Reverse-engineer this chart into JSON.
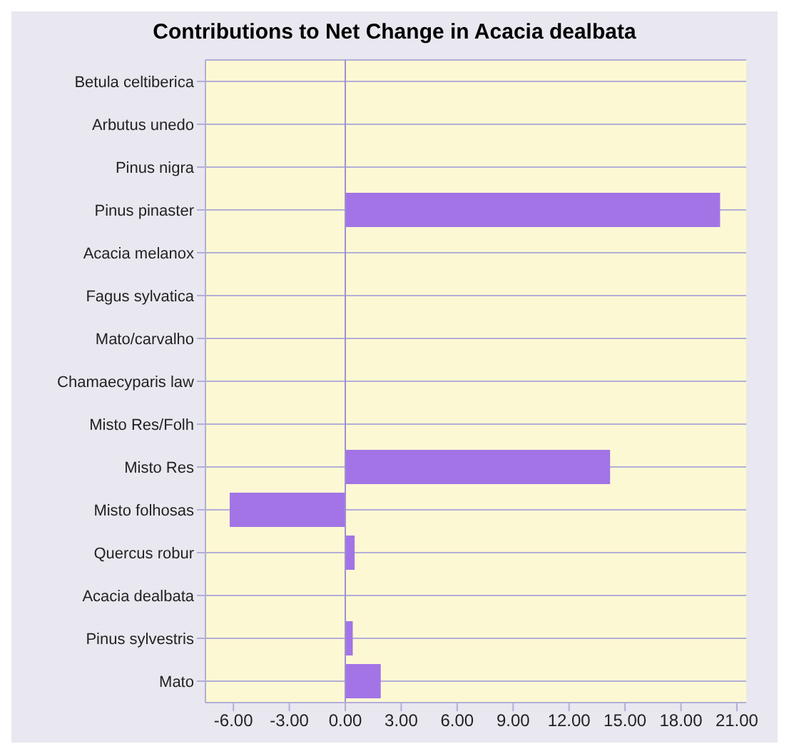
{
  "chart_data": {
    "type": "bar",
    "orientation": "horizontal",
    "title": "Contributions to Net Change in Acacia dealbata",
    "categories": [
      "Betula celtiberica",
      "Arbutus unedo",
      "Pinus nigra",
      "Pinus pinaster",
      "Acacia melanox",
      "Fagus sylvatica",
      "Mato/carvalho",
      "Chamaecyparis law",
      "Misto Res/Folh",
      "Misto Res",
      "Misto folhosas",
      "Quercus robur",
      "Acacia dealbata",
      "Pinus sylvestris",
      "Mato"
    ],
    "values": [
      0,
      0,
      0,
      20.1,
      0,
      0,
      0,
      0,
      0,
      14.2,
      -6.2,
      0.5,
      0,
      0.4,
      1.9
    ],
    "color": "#a274e6",
    "xlim": [
      -7.5,
      21.5
    ],
    "xticks": [
      {
        "value": -6,
        "label": "-6.00"
      },
      {
        "value": -3,
        "label": "-3.00"
      },
      {
        "value": 0,
        "label": "0.00"
      },
      {
        "value": 3,
        "label": "3.00"
      },
      {
        "value": 6,
        "label": "6.00"
      },
      {
        "value": 9,
        "label": "9.00"
      },
      {
        "value": 12,
        "label": "12.00"
      },
      {
        "value": 15,
        "label": "15.00"
      },
      {
        "value": 18,
        "label": "18.00"
      },
      {
        "value": 21,
        "label": "21.00"
      }
    ],
    "ref_lines": [
      {
        "axis": "x",
        "value": 0,
        "color": "#9f8fd0"
      }
    ],
    "grid": "y"
  }
}
